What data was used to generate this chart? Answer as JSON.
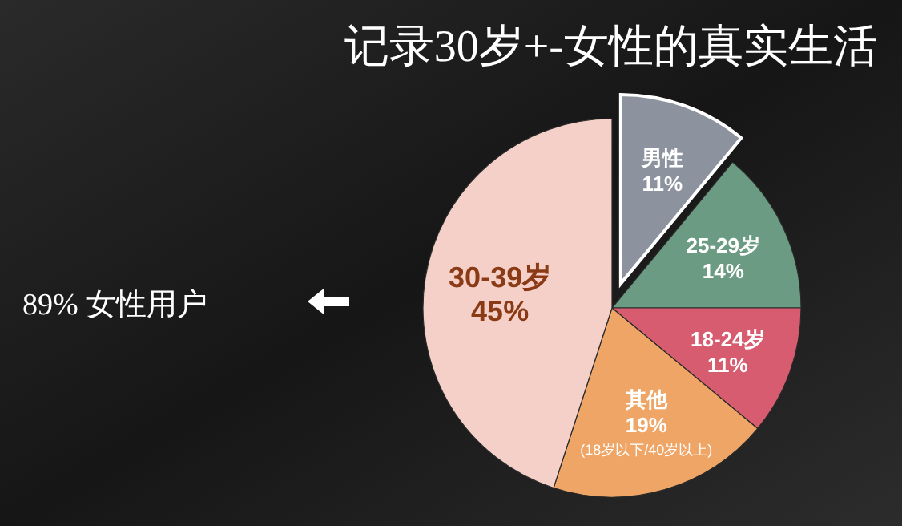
{
  "chart_data": {
    "type": "pie",
    "title": "记录30岁+-女性的真实生活",
    "categories": [
      "男性",
      "25-29岁",
      "18-24岁",
      "其他",
      "30-39岁"
    ],
    "values": [
      11,
      14,
      11,
      19,
      45
    ],
    "value_labels": [
      "11%",
      "14%",
      "11%",
      "19%",
      "45%"
    ],
    "colors": [
      "#8c939e",
      "#6b9b82",
      "#d85c70",
      "#efa565",
      "#f4d0c8"
    ],
    "annotations": [
      "89% 女性用户",
      {
        "text": "(18岁以下/40岁以上)",
        "x": "其他"
      }
    ]
  }
}
